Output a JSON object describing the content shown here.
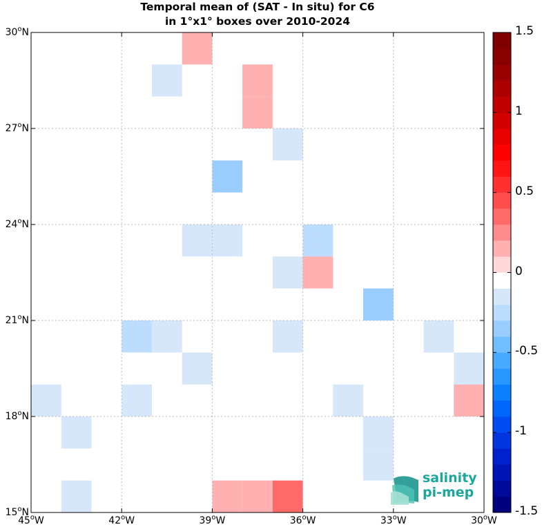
{
  "title": {
    "line1": "Temporal mean of (SAT - In situ) for C6",
    "line2": "in 1°x1° boxes over 2010-2024"
  },
  "map": {
    "lon_range": [
      -45,
      -30
    ],
    "lat_range": [
      15,
      30
    ],
    "grid": true,
    "x_ticks": [
      {
        "value": -45,
        "label": "45",
        "suffix": "W"
      },
      {
        "value": -42,
        "label": "42",
        "suffix": "W"
      },
      {
        "value": -39,
        "label": "39",
        "suffix": "W"
      },
      {
        "value": -36,
        "label": "36",
        "suffix": "W"
      },
      {
        "value": -33,
        "label": "33",
        "suffix": "W"
      },
      {
        "value": -30,
        "label": "30",
        "suffix": "W"
      }
    ],
    "y_ticks": [
      {
        "value": 30,
        "label": "30",
        "suffix": "N"
      },
      {
        "value": 27,
        "label": "27",
        "suffix": "N"
      },
      {
        "value": 24,
        "label": "24",
        "suffix": "N"
      },
      {
        "value": 21,
        "label": "21",
        "suffix": "N"
      },
      {
        "value": 18,
        "label": "18",
        "suffix": "N"
      },
      {
        "value": 15,
        "label": "15",
        "suffix": "N"
      }
    ],
    "cells": [
      {
        "lon": -40,
        "lat": 29,
        "value": 0.15
      },
      {
        "lon": -41,
        "lat": 28,
        "value": -0.15
      },
      {
        "lon": -38,
        "lat": 28,
        "value": 0.15
      },
      {
        "lon": -38,
        "lat": 27,
        "value": 0.15
      },
      {
        "lon": -37,
        "lat": 26,
        "value": -0.15
      },
      {
        "lon": -39,
        "lat": 25,
        "value": -0.4
      },
      {
        "lon": -40,
        "lat": 23,
        "value": -0.15
      },
      {
        "lon": -39,
        "lat": 23,
        "value": -0.15
      },
      {
        "lon": -36,
        "lat": 23,
        "value": -0.25
      },
      {
        "lon": -37,
        "lat": 22,
        "value": -0.15
      },
      {
        "lon": -36,
        "lat": 22,
        "value": 0.15
      },
      {
        "lon": -34,
        "lat": 21,
        "value": -0.3
      },
      {
        "lon": -42,
        "lat": 20,
        "value": -0.25
      },
      {
        "lon": -41,
        "lat": 20,
        "value": -0.15
      },
      {
        "lon": -37,
        "lat": 20,
        "value": -0.15
      },
      {
        "lon": -32,
        "lat": 20,
        "value": -0.15
      },
      {
        "lon": -40,
        "lat": 19,
        "value": -0.15
      },
      {
        "lon": -31,
        "lat": 19,
        "value": -0.15
      },
      {
        "lon": -45,
        "lat": 18,
        "value": -0.15
      },
      {
        "lon": -42,
        "lat": 18,
        "value": -0.15
      },
      {
        "lon": -35,
        "lat": 18,
        "value": -0.15
      },
      {
        "lon": -31,
        "lat": 18,
        "value": 0.15
      },
      {
        "lon": -44,
        "lat": 17,
        "value": -0.15
      },
      {
        "lon": -34,
        "lat": 17,
        "value": -0.15
      },
      {
        "lon": -34,
        "lat": 16,
        "value": -0.15
      },
      {
        "lon": -44,
        "lat": 15,
        "value": -0.15
      },
      {
        "lon": -39,
        "lat": 15,
        "value": 0.15
      },
      {
        "lon": -38,
        "lat": 15,
        "value": 0.15
      },
      {
        "lon": -37,
        "lat": 15,
        "value": 0.3
      }
    ]
  },
  "colorbar": {
    "range": [
      -1.5,
      1.5
    ],
    "colors": [
      "#00007f",
      "#000a9a",
      "#0015b4",
      "#0022cc",
      "#0035e0",
      "#004cf0",
      "#0066fa",
      "#0a80ff",
      "#2896ff",
      "#48aaff",
      "#70beff",
      "#99ccff",
      "#bdddff",
      "#d6e7fa",
      "#ffffff",
      "#ffd9d9",
      "#ffb0b0",
      "#ff8c8c",
      "#ff6b6b",
      "#ff4d4d",
      "#ff3030",
      "#ff1515",
      "#ff0000",
      "#e60000",
      "#d30000",
      "#c00000",
      "#ad0000",
      "#9a0000",
      "#880000",
      "#7f0000"
    ],
    "ticks": [
      {
        "value": 1.5,
        "label": "1.5"
      },
      {
        "value": 1,
        "label": "1"
      },
      {
        "value": 0.5,
        "label": "0.5"
      },
      {
        "value": 0,
        "label": "0"
      },
      {
        "value": -0.5,
        "label": "-0.5"
      },
      {
        "value": -1,
        "label": "-1"
      },
      {
        "value": -1.5,
        "label": "-1.5"
      }
    ]
  },
  "logo": {
    "line1": "salinity",
    "line2": "pi-mep",
    "color": "#1aa79c"
  }
}
